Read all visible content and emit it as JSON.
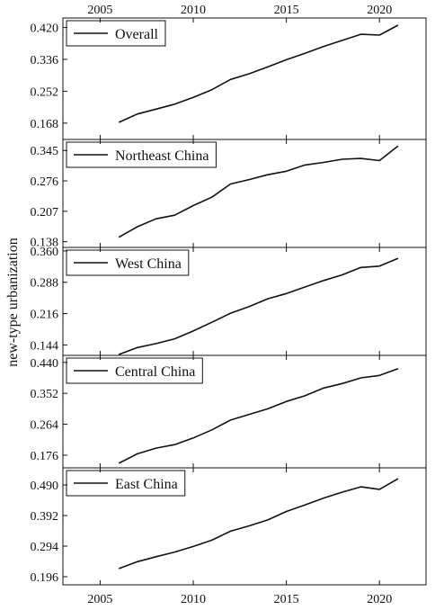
{
  "chart_data": {
    "type": "line",
    "ylabel": "new-type urbanization",
    "x_ticks": [
      2005,
      2010,
      2015,
      2020
    ],
    "xlim": [
      2003,
      2022.5
    ],
    "x": [
      2006,
      2007,
      2008,
      2009,
      2010,
      2011,
      2012,
      2013,
      2014,
      2015,
      2016,
      2017,
      2018,
      2019,
      2020,
      2021
    ],
    "panels": [
      {
        "name": "Overall",
        "ylim": [
          0.125,
          0.445
        ],
        "y_ticks": [
          0.168,
          0.252,
          0.336,
          0.42
        ],
        "tick_labels": [
          "0.168",
          "0.252",
          "0.336",
          "0.420"
        ],
        "values": [
          0.17,
          0.192,
          0.205,
          0.218,
          0.236,
          0.256,
          0.283,
          0.298,
          0.316,
          0.335,
          0.352,
          0.37,
          0.386,
          0.402,
          0.4,
          0.426
        ]
      },
      {
        "name": "Northeast China",
        "ylim": [
          0.125,
          0.37
        ],
        "y_ticks": [
          0.138,
          0.207,
          0.276,
          0.345
        ],
        "tick_labels": [
          "0.138",
          "0.207",
          "0.276",
          "0.345"
        ],
        "values": [
          0.148,
          0.172,
          0.19,
          0.198,
          0.22,
          0.239,
          0.269,
          0.279,
          0.29,
          0.298,
          0.312,
          0.318,
          0.325,
          0.327,
          0.322,
          0.355
        ]
      },
      {
        "name": "West China",
        "ylim": [
          0.12,
          0.368
        ],
        "y_ticks": [
          0.144,
          0.216,
          0.288,
          0.36
        ],
        "tick_labels": [
          "0.144",
          "0.216",
          "0.288",
          "0.360"
        ],
        "values": [
          0.122,
          0.138,
          0.147,
          0.158,
          0.176,
          0.196,
          0.217,
          0.232,
          0.25,
          0.262,
          0.277,
          0.292,
          0.305,
          0.322,
          0.325,
          0.343
        ]
      },
      {
        "name": "Central China",
        "ylim": [
          0.14,
          0.46
        ],
        "y_ticks": [
          0.176,
          0.264,
          0.352,
          0.44
        ],
        "tick_labels": [
          "0.176",
          "0.264",
          "0.352",
          "0.440"
        ],
        "values": [
          0.153,
          0.18,
          0.196,
          0.206,
          0.225,
          0.248,
          0.276,
          0.292,
          0.308,
          0.329,
          0.345,
          0.367,
          0.38,
          0.396,
          0.403,
          0.422
        ]
      },
      {
        "name": "East China",
        "ylim": [
          0.17,
          0.545
        ],
        "y_ticks": [
          0.196,
          0.294,
          0.392,
          0.49
        ],
        "tick_labels": [
          "0.196",
          "0.294",
          "0.392",
          "0.490"
        ],
        "values": [
          0.222,
          0.244,
          0.26,
          0.275,
          0.293,
          0.313,
          0.342,
          0.359,
          0.378,
          0.405,
          0.426,
          0.448,
          0.467,
          0.484,
          0.476,
          0.51
        ]
      }
    ]
  }
}
